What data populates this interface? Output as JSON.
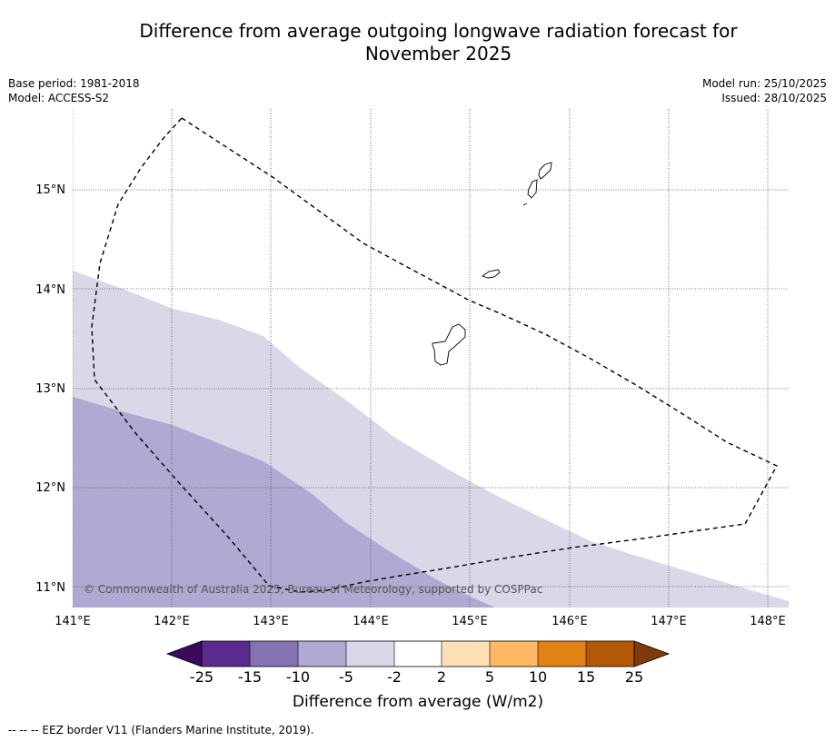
{
  "title_line1": "Difference from average outgoing longwave radiation forecast for",
  "title_line2": "November 2025",
  "meta": {
    "base_period": "Base period: 1981-2018",
    "model": "Model: ACCESS-S2",
    "model_run": "Model run: 25/10/2025",
    "issued": "Issued: 28/10/2025"
  },
  "map": {
    "lon_labels": [
      "141°E",
      "142°E",
      "143°E",
      "144°E",
      "145°E",
      "146°E",
      "147°E",
      "148°E"
    ],
    "lat_labels": [
      "15°N",
      "14°N",
      "13°N",
      "12°N",
      "11°N"
    ],
    "copyright": "© Commonwealth of Australia 2025, Bureau of Meteorology, supported by COSPPac"
  },
  "colorbar": {
    "tick_labels": [
      "-25",
      "-15",
      "-10",
      "-5",
      "-2",
      "2",
      "5",
      "10",
      "15",
      "25"
    ],
    "colors": [
      "#3a0a5e",
      "#5b2a8e",
      "#8572b0",
      "#b0a9d1",
      "#d8d8e9",
      "#ffffff",
      "#fde0b5",
      "#fdb863",
      "#e08214",
      "#b35806",
      "#7f3b08"
    ],
    "label": "Difference from average (W/m2)"
  },
  "footer": "--  --  -- EEZ border V11 (Flanders Marine Institute, 2019)."
}
